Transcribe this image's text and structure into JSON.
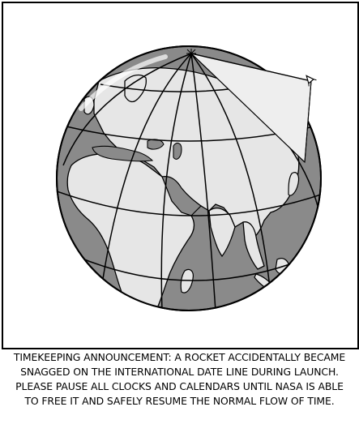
{
  "colors": {
    "ocean": "#8a8a8a",
    "land": "#e6e6e6",
    "ink": "#000000",
    "background": "#ffffff"
  },
  "caption_lines": [
    "TIMEKEEPING ANNOUNCEMENT: A ROCKET ACCIDENTALLY BECAME",
    "SNAGGED ON THE INTERNATIONAL DATE LINE DURING LAUNCH.",
    "PLEASE PAUSE ALL CLOCKS AND CALENDARS UNTIL NASA IS ABLE",
    "TO FREE IT AND SAFELY RESUME THE NORMAL FLOW OF TIME."
  ]
}
